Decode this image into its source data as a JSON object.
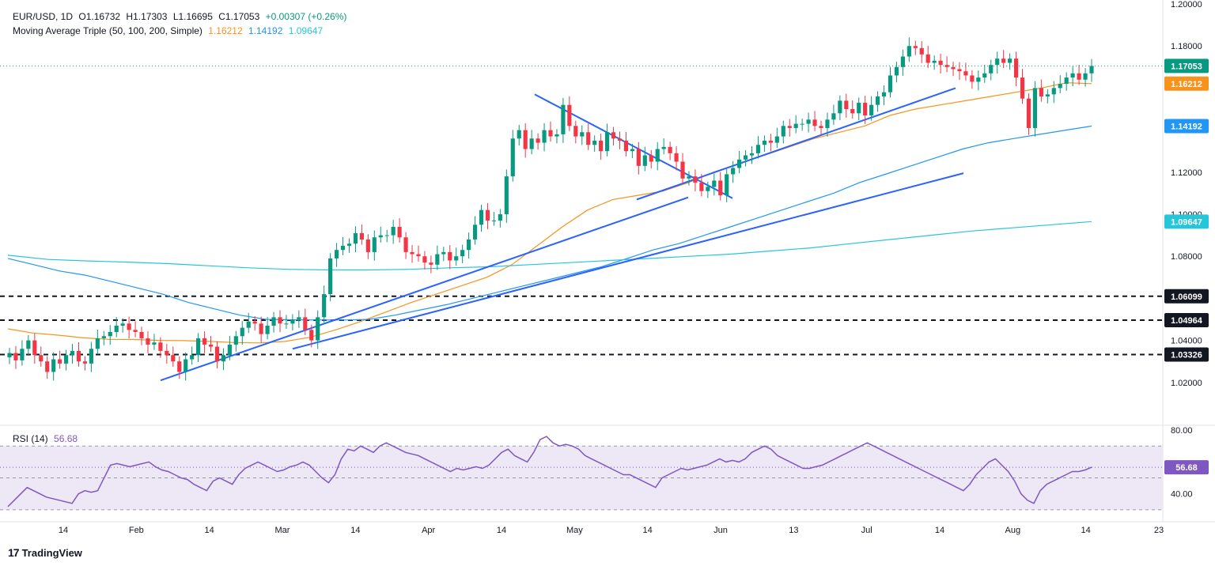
{
  "header": {
    "symbol": "EUR/USD, 1D",
    "open": "O1.16732",
    "high": "H1.17303",
    "low": "L1.16695",
    "close": "C1.17053",
    "change": "+0.00307 (+0.26%)",
    "ma_label": "Moving Average Triple (50, 100, 200, Simple)",
    "ma50": "1.16212",
    "ma100": "1.14192",
    "ma200": "1.09647",
    "rsi_label": "RSI (14)",
    "rsi_value": "56.68"
  },
  "brand": {
    "name": "TradingView",
    "icon": "tradingview-logo-icon"
  },
  "colors": {
    "up": "#089981",
    "down": "#f23645",
    "ma50": "#f7931a",
    "ma100": "#2196f3",
    "ma200": "#26c6da",
    "trendline": "#2962ff",
    "rsi": "#7e57c2",
    "rsi_band": "#ede7f6",
    "price_tag": "#089981",
    "level_tag": "#131722"
  },
  "chart_data": [
    {
      "type": "candlestick",
      "y_ticks": [
        "1.20000",
        "1.18000",
        "1.12000",
        "1.10000",
        "1.08000",
        "1.04000",
        "1.02000"
      ],
      "ylim": [
        1.0,
        1.2
      ],
      "x_ticks": [
        "14",
        "Feb",
        "14",
        "Mar",
        "14",
        "Apr",
        "14",
        "May",
        "14",
        "Jun",
        "13",
        "Jul",
        "14",
        "Aug",
        "14",
        "23"
      ],
      "last_price": {
        "value": 1.17053,
        "label": "1.17053"
      },
      "horizontal_levels": [
        {
          "value": 1.06099,
          "label": "1.06099"
        },
        {
          "value": 1.04964,
          "label": "1.04964"
        },
        {
          "value": 1.03326,
          "label": "1.03326"
        }
      ],
      "series": [
        {
          "name": "MA 50",
          "last_label": "1.16212",
          "values": [
            1.0455,
            1.0435,
            1.0425,
            1.0412,
            1.0405,
            1.0404,
            1.04,
            1.0399,
            1.0395,
            1.039,
            1.0388,
            1.0395,
            1.0415,
            1.045,
            1.049,
            1.0535,
            1.058,
            1.062,
            1.066,
            1.07,
            1.076,
            1.085,
            1.094,
            1.102,
            1.107,
            1.109,
            1.111,
            1.115,
            1.12,
            1.124,
            1.128,
            1.132,
            1.136,
            1.139,
            1.142,
            1.147,
            1.15,
            1.152,
            1.154,
            1.156,
            1.158,
            1.16,
            1.1625,
            1.1621
          ]
        },
        {
          "name": "MA 100",
          "last_label": "1.14192",
          "values": [
            1.079,
            1.076,
            1.073,
            1.071,
            1.068,
            1.065,
            1.062,
            1.058,
            1.055,
            1.052,
            1.05,
            1.0498,
            1.0497,
            1.0497,
            1.05,
            1.052,
            1.0545,
            1.057,
            1.06,
            1.063,
            1.066,
            1.069,
            1.072,
            1.075,
            1.079,
            1.083,
            1.086,
            1.09,
            1.094,
            1.098,
            1.102,
            1.106,
            1.11,
            1.115,
            1.119,
            1.123,
            1.127,
            1.131,
            1.134,
            1.136,
            1.138,
            1.14,
            1.1419
          ]
        },
        {
          "name": "MA 200",
          "last_label": "1.09647",
          "values": [
            1.0805,
            1.0785,
            1.0778,
            1.0772,
            1.0765,
            1.0755,
            1.0745,
            1.0738,
            1.0735,
            1.0735,
            1.0738,
            1.0745,
            1.075,
            1.076,
            1.077,
            1.078,
            1.079,
            1.08,
            1.081,
            1.0825,
            1.084,
            1.086,
            1.088,
            1.09,
            1.092,
            1.0935,
            1.095,
            1.0965
          ]
        },
        {
          "name": "Trendline 1",
          "values": [
            1.021,
            1.108
          ]
        },
        {
          "name": "Trendline 2",
          "values": [
            1.157,
            1.1076
          ]
        },
        {
          "name": "Trendline 3",
          "values": [
            1.036,
            1.1195
          ]
        },
        {
          "name": "Trendline 4",
          "values": [
            1.107,
            1.16
          ]
        }
      ],
      "closes": [
        1.034,
        1.0305,
        1.036,
        1.04,
        1.033,
        1.03,
        1.025,
        1.031,
        1.029,
        1.033,
        1.035,
        1.03,
        1.029,
        1.036,
        1.041,
        1.042,
        1.044,
        1.047,
        1.048,
        1.045,
        1.044,
        1.041,
        1.038,
        1.039,
        1.035,
        1.033,
        1.03,
        1.025,
        1.031,
        1.033,
        1.041,
        1.038,
        1.037,
        1.03,
        1.033,
        1.038,
        1.042,
        1.046,
        1.049,
        1.048,
        1.043,
        1.047,
        1.051,
        1.048,
        1.048,
        1.05,
        1.051,
        1.045,
        1.04,
        1.051,
        1.062,
        1.079,
        1.083,
        1.085,
        1.086,
        1.091,
        1.088,
        1.082,
        1.089,
        1.09,
        1.09,
        1.094,
        1.089,
        1.082,
        1.081,
        1.08,
        1.077,
        1.076,
        1.081,
        1.082,
        1.078,
        1.08,
        1.083,
        1.088,
        1.095,
        1.102,
        1.097,
        1.097,
        1.1,
        1.118,
        1.136,
        1.14,
        1.131,
        1.136,
        1.134,
        1.14,
        1.137,
        1.138,
        1.152,
        1.142,
        1.137,
        1.139,
        1.133,
        1.135,
        1.13,
        1.139,
        1.136,
        1.135,
        1.13,
        1.131,
        1.123,
        1.128,
        1.125,
        1.131,
        1.132,
        1.129,
        1.125,
        1.117,
        1.118,
        1.115,
        1.111,
        1.113,
        1.116,
        1.109,
        1.119,
        1.122,
        1.126,
        1.128,
        1.129,
        1.133,
        1.135,
        1.134,
        1.137,
        1.142,
        1.141,
        1.143,
        1.143,
        1.145,
        1.142,
        1.141,
        1.145,
        1.148,
        1.154,
        1.15,
        1.148,
        1.153,
        1.147,
        1.152,
        1.156,
        1.158,
        1.166,
        1.17,
        1.175,
        1.18,
        1.179,
        1.176,
        1.172,
        1.173,
        1.171,
        1.17,
        1.169,
        1.168,
        1.166,
        1.163,
        1.165,
        1.167,
        1.171,
        1.174,
        1.172,
        1.174,
        1.165,
        1.155,
        1.141,
        1.16,
        1.156,
        1.157,
        1.16,
        1.162,
        1.165,
        1.167,
        1.164,
        1.167,
        1.1705
      ]
    },
    {
      "type": "line",
      "name": "RSI (14)",
      "y_ticks": [
        "80.00",
        "40.00"
      ],
      "ylim": [
        25,
        82
      ],
      "bands": [
        70,
        50,
        30
      ],
      "last_value": 56.68,
      "last_label": "56.68",
      "values": [
        32,
        36,
        40,
        44,
        42,
        40,
        38,
        37,
        36,
        35,
        34,
        40,
        42,
        41,
        42,
        50,
        58,
        59,
        58,
        57,
        58,
        59,
        60,
        57,
        55,
        54,
        52,
        50,
        49,
        46,
        44,
        42,
        48,
        50,
        48,
        46,
        52,
        56,
        58,
        60,
        58,
        56,
        54,
        55,
        57,
        58,
        60,
        58,
        54,
        50,
        47,
        52,
        62,
        68,
        67,
        70,
        68,
        66,
        70,
        72,
        70,
        68,
        66,
        65,
        64,
        62,
        60,
        58,
        56,
        54,
        56,
        55,
        56,
        57,
        56,
        58,
        62,
        66,
        68,
        64,
        62,
        60,
        66,
        74,
        76,
        72,
        70,
        71,
        70,
        68,
        64,
        62,
        60,
        58,
        56,
        54,
        52,
        52,
        50,
        48,
        46,
        44,
        50,
        52,
        54,
        56,
        55,
        56,
        57,
        58,
        60,
        62,
        60,
        61,
        60,
        62,
        66,
        68,
        70,
        68,
        64,
        62,
        60,
        58,
        56,
        56,
        57,
        58,
        60,
        62,
        64,
        66,
        68,
        70,
        72,
        70,
        68,
        66,
        64,
        62,
        60,
        58,
        56,
        54,
        52,
        50,
        48,
        46,
        44,
        42,
        46,
        52,
        56,
        60,
        62,
        58,
        54,
        48,
        40,
        36,
        34,
        42,
        46,
        48,
        50,
        52,
        54,
        54,
        55,
        56.68
      ]
    }
  ]
}
